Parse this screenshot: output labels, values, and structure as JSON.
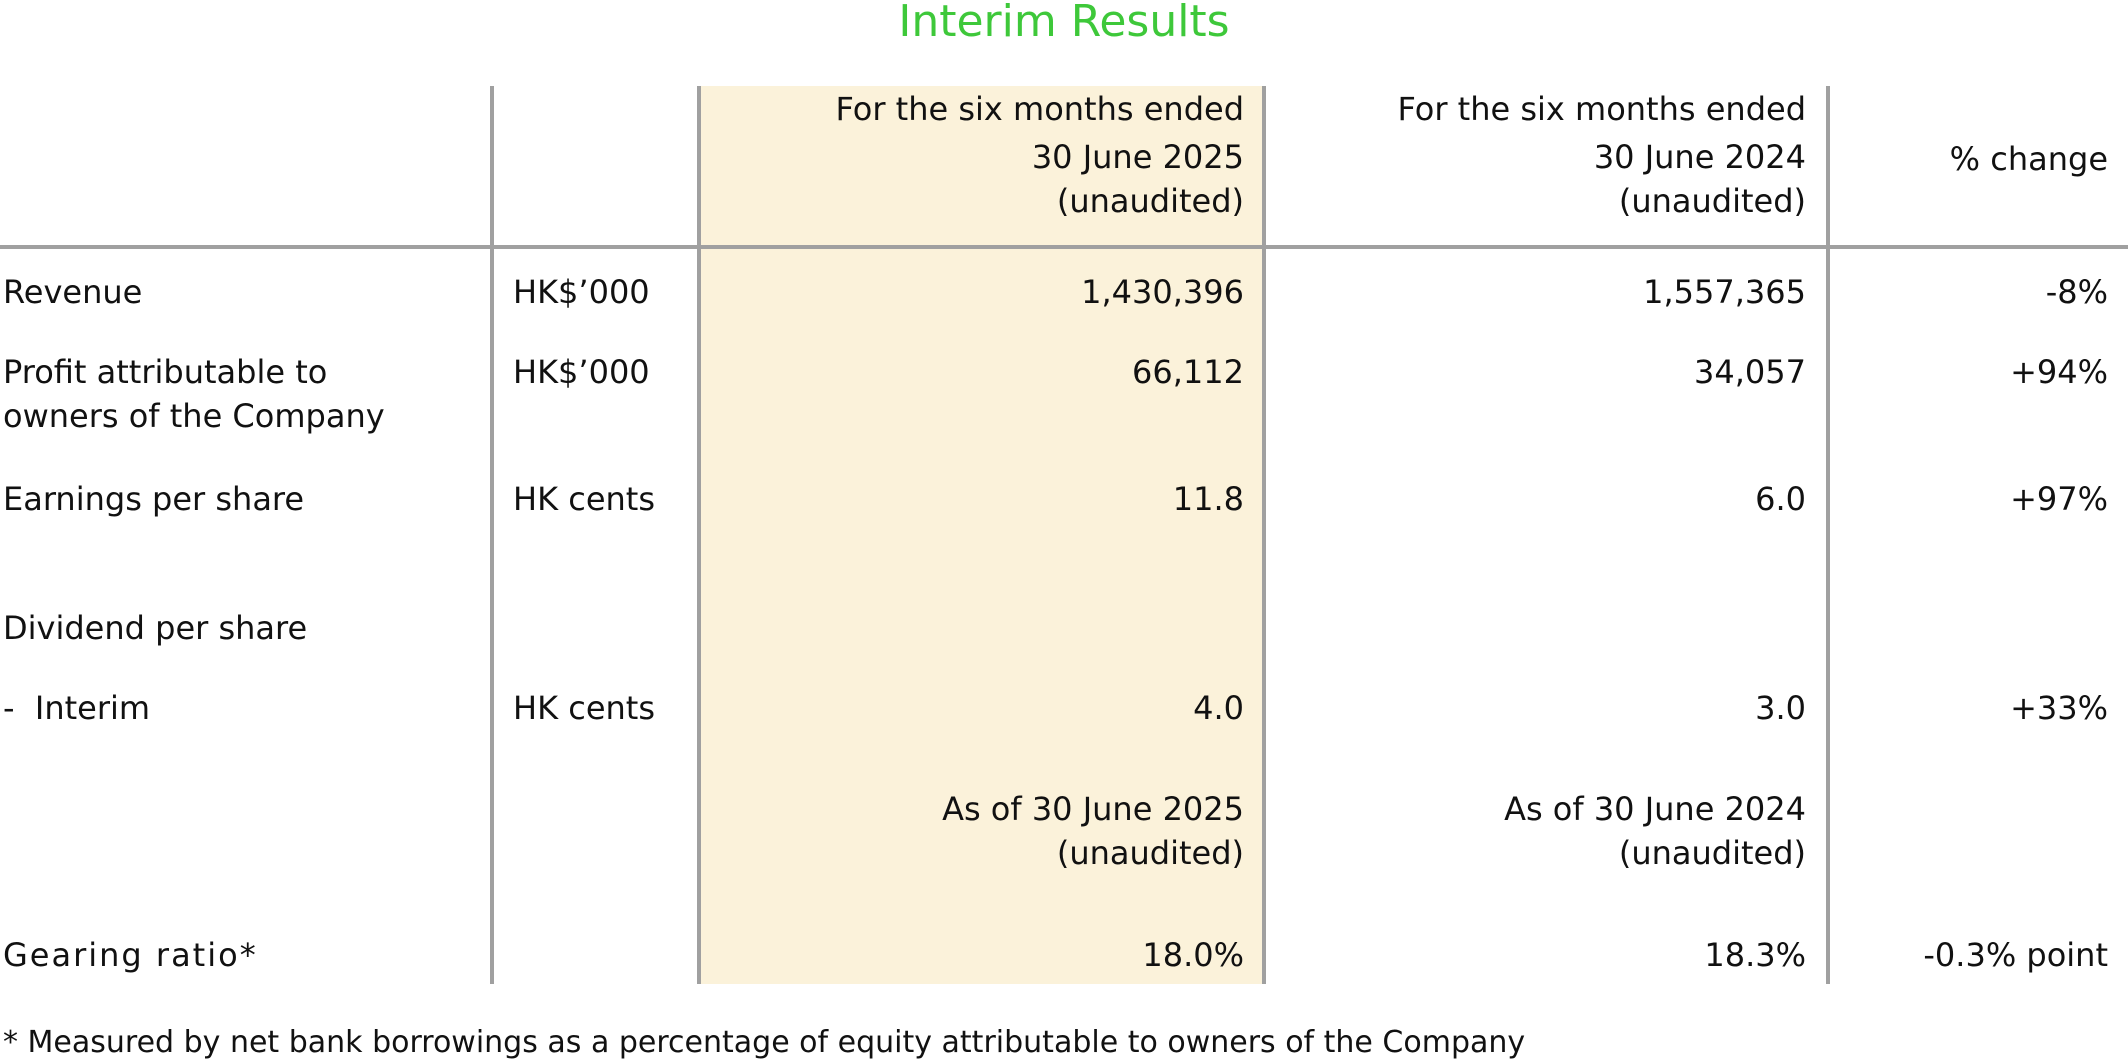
{
  "title": "Interim Results",
  "header": {
    "col_current": [
      "For the six months ended",
      "30 June 2025",
      "(unaudited)"
    ],
    "col_prior": [
      "For the six months ended",
      "30 June 2024",
      "(unaudited)"
    ],
    "col_change": "% change"
  },
  "rows": {
    "revenue": {
      "label": "Revenue",
      "unit": "HK$’000",
      "current": "1,430,396",
      "prior": "1,557,365",
      "change": "-8%"
    },
    "profit": {
      "label_line1": "Profit attributable to",
      "label_line2": "owners of the Company",
      "unit": "HK$’000",
      "current": "66,112",
      "prior": "34,057",
      "change": "+94%"
    },
    "eps": {
      "label": "Earnings per share",
      "unit": "HK cents",
      "current": "11.8",
      "prior": "6.0",
      "change": "+97%"
    },
    "dividend_heading": {
      "label": "Dividend per share"
    },
    "interim": {
      "label": "-  Interim",
      "unit": "HK cents",
      "current": "4.0",
      "prior": "3.0",
      "change": "+33%"
    },
    "as_of": {
      "current_line1": "As of 30 June 2025",
      "current_line2": "(unaudited)",
      "prior_line1": "As of 30 June 2024",
      "prior_line2": "(unaudited)"
    },
    "gearing": {
      "label": "Gearing ratio*",
      "current": "18.0%",
      "prior": "18.3%",
      "change": "-0.3% point"
    }
  },
  "footnote": "* Measured by net bank borrowings as a percentage of equity attributable to owners of the Company",
  "colors": {
    "title": "#3ec83a",
    "highlight": "#fbf2da",
    "rules": "#a0a0a0"
  }
}
